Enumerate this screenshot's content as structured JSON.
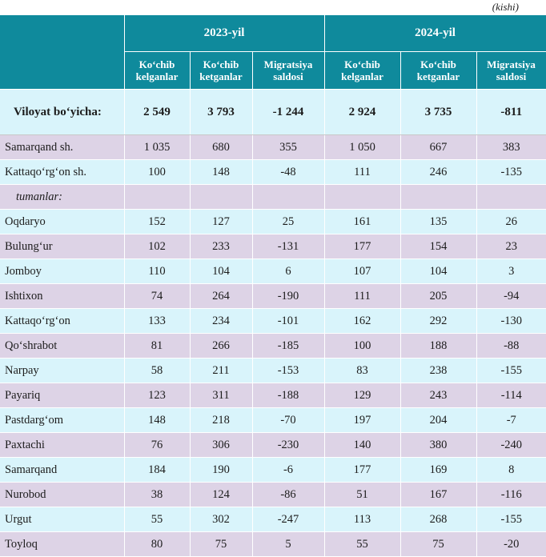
{
  "unit_note": "(kishi)",
  "header": {
    "year_2023": "2023-yil",
    "year_2024": "2024-yil",
    "col_arrived": "Ko‘chib kelganlar",
    "col_left": "Ko‘chib ketganlar",
    "col_balance": "Migratsiya saldosi"
  },
  "total": {
    "label": "Viloyat bo‘yicha:",
    "values": [
      "2 549",
      "3 793",
      "-1 244",
      "2 924",
      "3 735",
      "-811"
    ]
  },
  "rows": [
    {
      "name": "Samarqand sh.",
      "values": [
        "1 035",
        "680",
        "355",
        "1 050",
        "667",
        "383"
      ]
    },
    {
      "name": "Kattaqo‘rg‘on sh.",
      "values": [
        "100",
        "148",
        "-48",
        "111",
        "246",
        "-135"
      ]
    },
    {
      "name": "tumanlar:",
      "values": [
        "",
        "",
        "",
        "",
        "",
        ""
      ]
    },
    {
      "name": "Oqdaryo",
      "values": [
        "152",
        "127",
        "25",
        "161",
        "135",
        "26"
      ]
    },
    {
      "name": "Bulung‘ur",
      "values": [
        "102",
        "233",
        "-131",
        "177",
        "154",
        "23"
      ]
    },
    {
      "name": "Jomboy",
      "values": [
        "110",
        "104",
        "6",
        "107",
        "104",
        "3"
      ]
    },
    {
      "name": "Ishtixon",
      "values": [
        "74",
        "264",
        "-190",
        "111",
        "205",
        "-94"
      ]
    },
    {
      "name": "Kattaqo‘rg‘on",
      "values": [
        "133",
        "234",
        "-101",
        "162",
        "292",
        "-130"
      ]
    },
    {
      "name": "Qo‘shrabot",
      "values": [
        "81",
        "266",
        "-185",
        "100",
        "188",
        "-88"
      ]
    },
    {
      "name": "Narpay",
      "values": [
        "58",
        "211",
        "-153",
        "83",
        "238",
        "-155"
      ]
    },
    {
      "name": "Payariq",
      "values": [
        "123",
        "311",
        "-188",
        "129",
        "243",
        "-114"
      ]
    },
    {
      "name": "Pastdarg‘om",
      "values": [
        "148",
        "218",
        "-70",
        "197",
        "204",
        "-7"
      ]
    },
    {
      "name": "Paxtachi",
      "values": [
        "76",
        "306",
        "-230",
        "140",
        "380",
        "-240"
      ]
    },
    {
      "name": "Samarqand",
      "values": [
        "184",
        "190",
        "-6",
        "177",
        "169",
        "8"
      ]
    },
    {
      "name": "Nurobod",
      "values": [
        "38",
        "124",
        "-86",
        "51",
        "167",
        "-116"
      ]
    },
    {
      "name": "Urgut",
      "values": [
        "55",
        "302",
        "-247",
        "113",
        "268",
        "-155"
      ]
    },
    {
      "name": "Toyloq",
      "values": [
        "80",
        "75",
        "5",
        "55",
        "75",
        "-20"
      ]
    }
  ]
}
